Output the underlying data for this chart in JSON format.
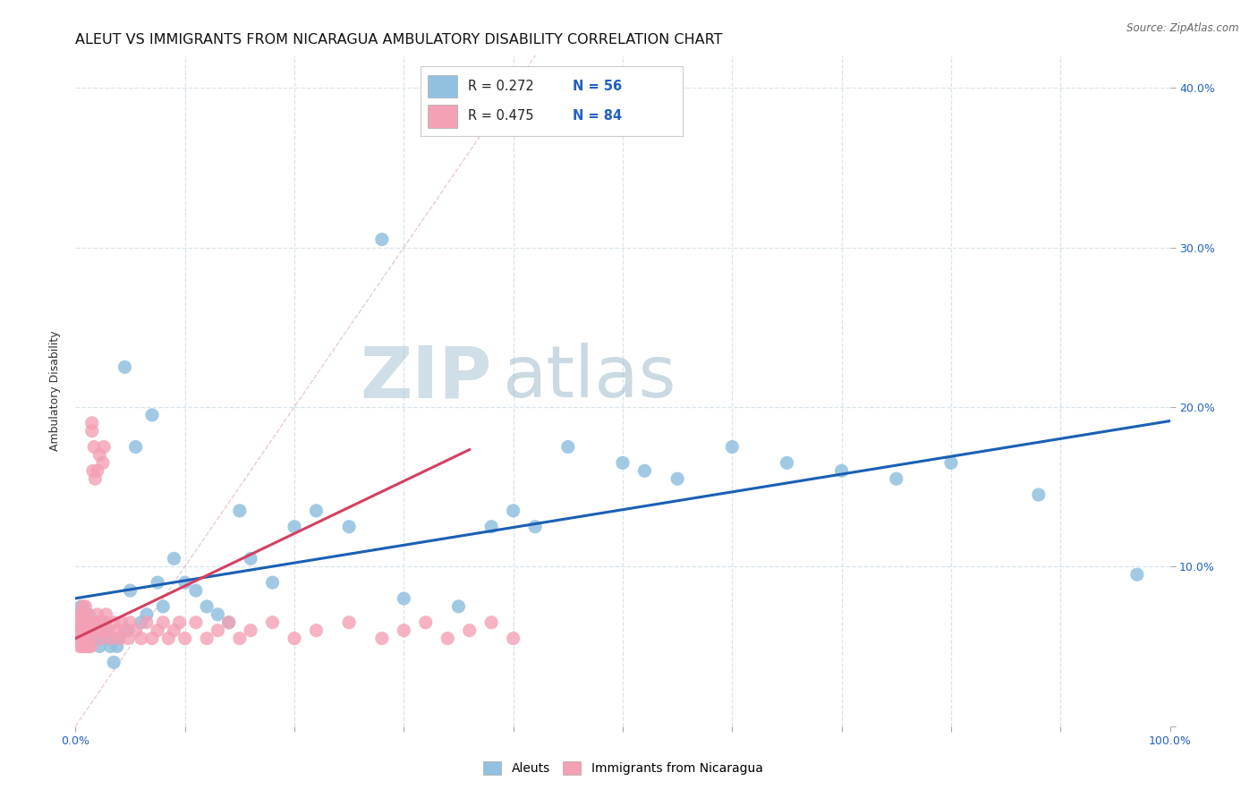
{
  "title": "ALEUT VS IMMIGRANTS FROM NICARAGUA AMBULATORY DISABILITY CORRELATION CHART",
  "source": "Source: ZipAtlas.com",
  "ylabel": "Ambulatory Disability",
  "xlim": [
    0,
    1.0
  ],
  "ylim": [
    0,
    0.42
  ],
  "aleuts_color": "#92C0E0",
  "nicaragua_color": "#F4A0B5",
  "aleuts_line_color": "#1A5FB4",
  "nicaragua_line_color": "#D44060",
  "diagonal_color": "#E8C0C0",
  "watermark_zip": "ZIP",
  "watermark_atlas": "atlas",
  "legend_R1": "R = 0.272",
  "legend_N1": "N = 56",
  "legend_R2": "R = 0.475",
  "legend_N2": "N = 84",
  "aleuts_x": [
    0.005,
    0.007,
    0.009,
    0.01,
    0.012,
    0.014,
    0.015,
    0.017,
    0.018,
    0.02,
    0.022,
    0.025,
    0.028,
    0.03,
    0.032,
    0.035,
    0.038,
    0.04,
    0.045,
    0.048,
    0.05,
    0.055,
    0.06,
    0.065,
    0.07,
    0.075,
    0.08,
    0.09,
    0.1,
    0.11,
    0.12,
    0.13,
    0.14,
    0.15,
    0.16,
    0.18,
    0.2,
    0.22,
    0.25,
    0.28,
    0.3,
    0.35,
    0.38,
    0.4,
    0.42,
    0.45,
    0.5,
    0.52,
    0.55,
    0.6,
    0.65,
    0.7,
    0.75,
    0.8,
    0.88,
    0.97
  ],
  "aleuts_y": [
    0.075,
    0.065,
    0.06,
    0.055,
    0.07,
    0.06,
    0.055,
    0.065,
    0.06,
    0.055,
    0.05,
    0.065,
    0.06,
    0.055,
    0.05,
    0.04,
    0.05,
    0.055,
    0.225,
    0.06,
    0.085,
    0.175,
    0.065,
    0.07,
    0.195,
    0.09,
    0.075,
    0.105,
    0.09,
    0.085,
    0.075,
    0.07,
    0.065,
    0.135,
    0.105,
    0.09,
    0.125,
    0.135,
    0.125,
    0.305,
    0.08,
    0.075,
    0.125,
    0.135,
    0.125,
    0.175,
    0.165,
    0.16,
    0.155,
    0.175,
    0.165,
    0.16,
    0.155,
    0.165,
    0.145,
    0.095
  ],
  "nicaragua_x": [
    0.002,
    0.003,
    0.003,
    0.004,
    0.004,
    0.005,
    0.005,
    0.005,
    0.006,
    0.006,
    0.006,
    0.007,
    0.007,
    0.007,
    0.008,
    0.008,
    0.008,
    0.009,
    0.009,
    0.009,
    0.01,
    0.01,
    0.01,
    0.011,
    0.011,
    0.012,
    0.012,
    0.013,
    0.013,
    0.014,
    0.014,
    0.015,
    0.015,
    0.016,
    0.017,
    0.018,
    0.018,
    0.019,
    0.02,
    0.02,
    0.022,
    0.022,
    0.023,
    0.024,
    0.025,
    0.026,
    0.027,
    0.028,
    0.03,
    0.032,
    0.035,
    0.038,
    0.04,
    0.042,
    0.045,
    0.048,
    0.05,
    0.055,
    0.06,
    0.065,
    0.07,
    0.075,
    0.08,
    0.085,
    0.09,
    0.095,
    0.1,
    0.11,
    0.12,
    0.13,
    0.14,
    0.15,
    0.16,
    0.18,
    0.2,
    0.22,
    0.25,
    0.28,
    0.3,
    0.32,
    0.34,
    0.36,
    0.38,
    0.4
  ],
  "nicaragua_y": [
    0.06,
    0.055,
    0.065,
    0.05,
    0.07,
    0.06,
    0.055,
    0.065,
    0.05,
    0.06,
    0.07,
    0.055,
    0.065,
    0.075,
    0.05,
    0.06,
    0.07,
    0.055,
    0.065,
    0.075,
    0.05,
    0.06,
    0.07,
    0.055,
    0.065,
    0.05,
    0.06,
    0.055,
    0.065,
    0.05,
    0.06,
    0.185,
    0.19,
    0.16,
    0.175,
    0.065,
    0.155,
    0.06,
    0.07,
    0.16,
    0.065,
    0.17,
    0.055,
    0.06,
    0.165,
    0.175,
    0.065,
    0.07,
    0.06,
    0.055,
    0.065,
    0.06,
    0.055,
    0.065,
    0.06,
    0.055,
    0.065,
    0.06,
    0.055,
    0.065,
    0.055,
    0.06,
    0.065,
    0.055,
    0.06,
    0.065,
    0.055,
    0.065,
    0.055,
    0.06,
    0.065,
    0.055,
    0.06,
    0.065,
    0.055,
    0.06,
    0.065,
    0.055,
    0.06,
    0.065,
    0.055,
    0.06,
    0.065,
    0.055
  ],
  "background_color": "#ffffff",
  "grid_color": "#D8E4EC",
  "title_fontsize": 11.5,
  "axis_label_fontsize": 9,
  "tick_fontsize": 9
}
